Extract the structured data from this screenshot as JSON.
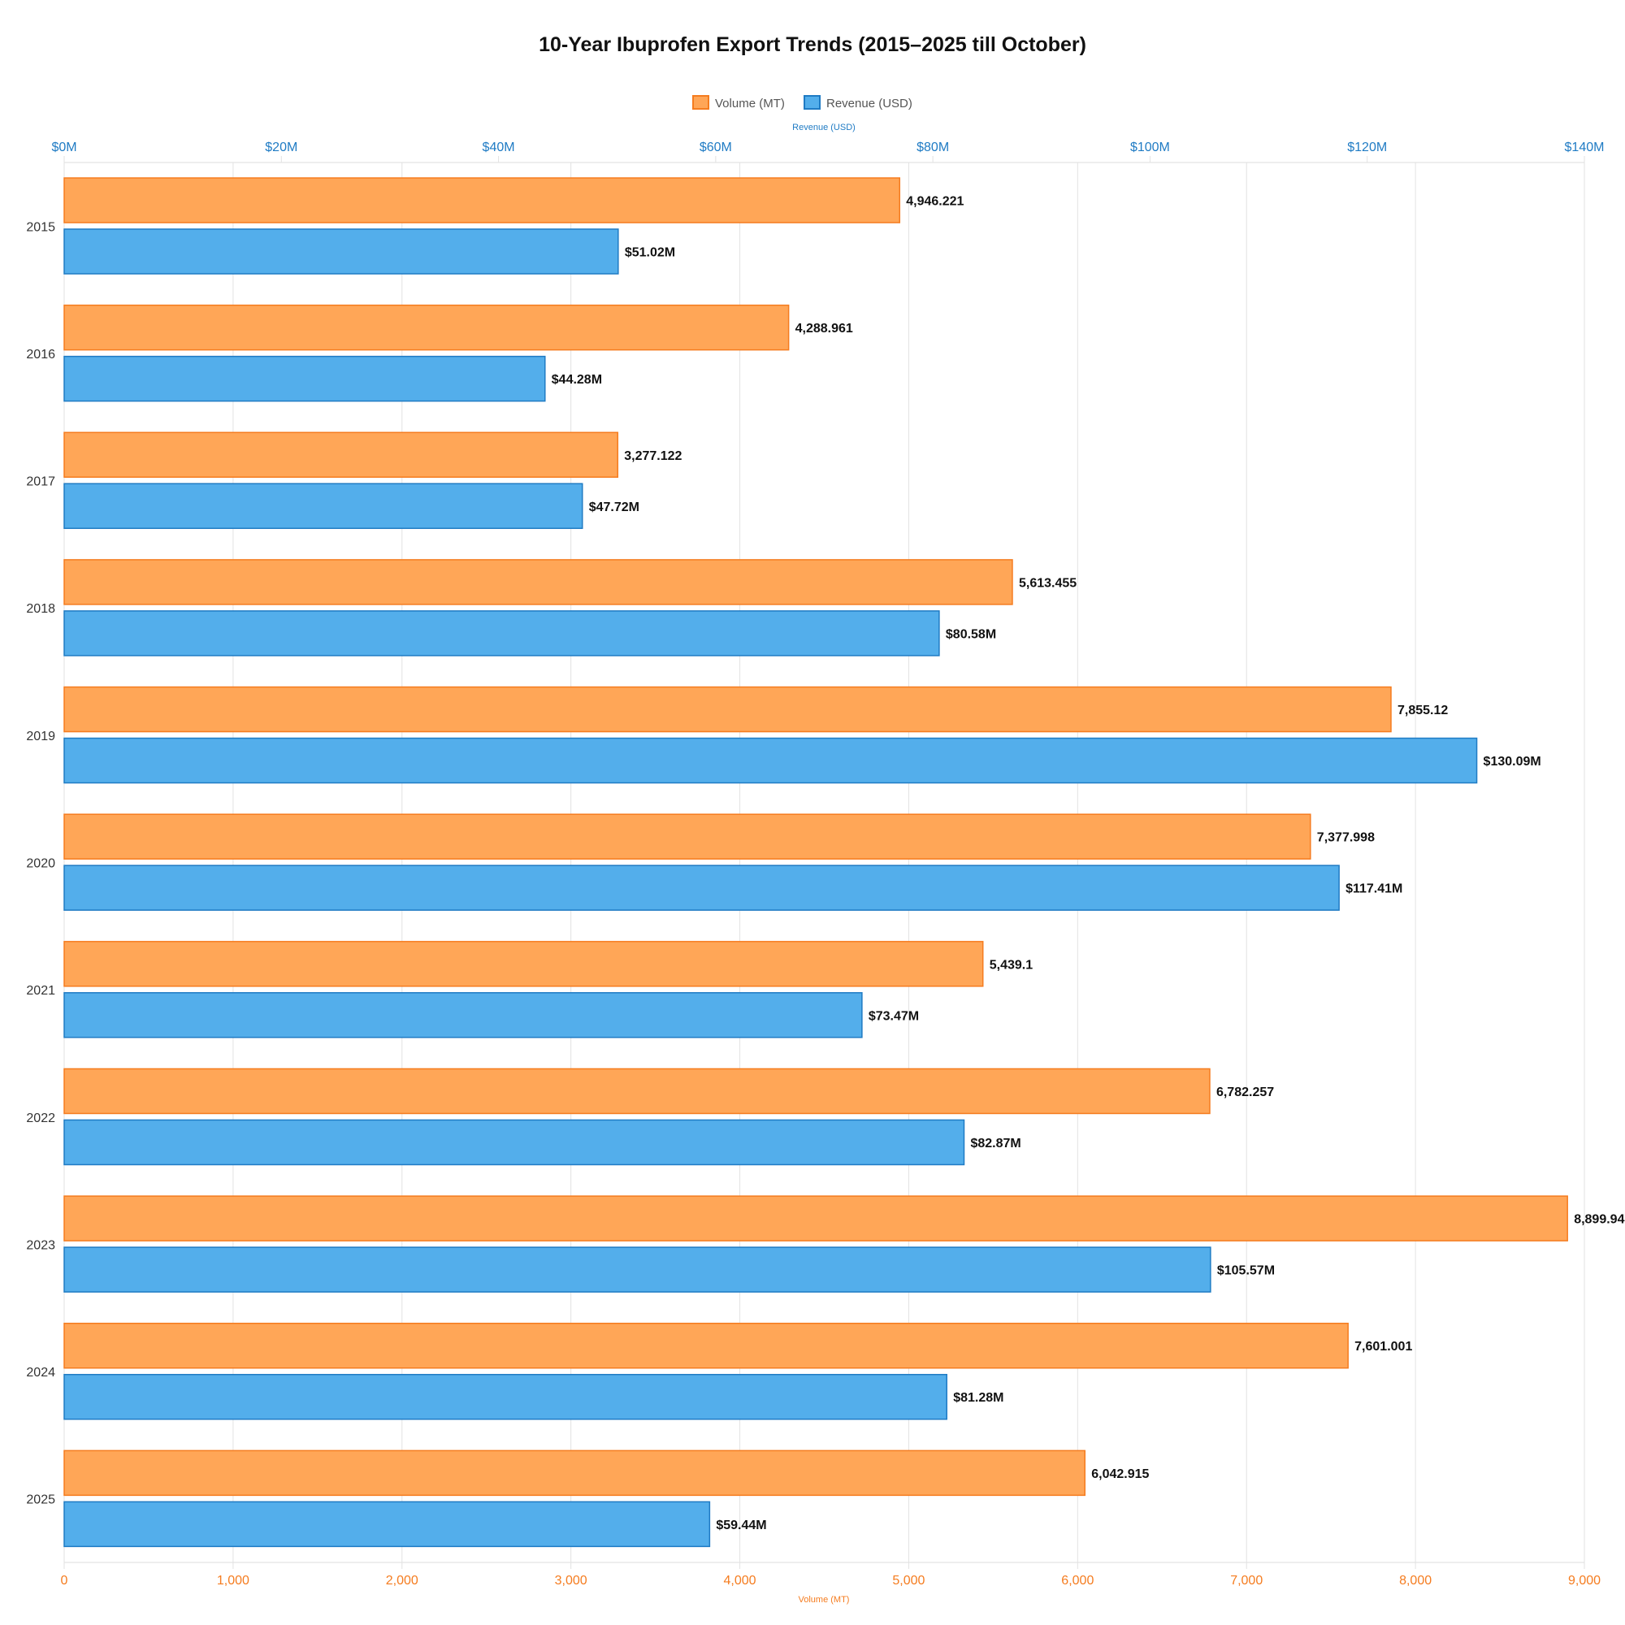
{
  "chart_data": {
    "type": "bar",
    "orientation": "horizontal",
    "title": "10-Year Ibuprofen Export Trends (2015–2025 till October)",
    "categories": [
      "2015",
      "2016",
      "2017",
      "2018",
      "2019",
      "2020",
      "2021",
      "2022",
      "2023",
      "2024",
      "2025"
    ],
    "series": [
      {
        "name": "Volume (MT)",
        "axis": "bottom",
        "color": "#ffa657",
        "border": "#f57c1f",
        "values": [
          4946.221,
          4288.961,
          3277.122,
          5613.455,
          7855.12,
          7377.998,
          5439.1,
          6782.257,
          8899.94,
          7601.001,
          6042.915
        ],
        "labels": [
          "4,946.221",
          "4,288.961",
          "3,277.122",
          "5,613.455",
          "7,855.12",
          "7,377.998",
          "5,439.1",
          "6,782.257",
          "8,899.94",
          "7,601.001",
          "6,042.915"
        ]
      },
      {
        "name": "Revenue (USD)",
        "axis": "top",
        "color": "#53aeeb",
        "border": "#1f7bc4",
        "values": [
          51.02,
          44.28,
          47.72,
          80.58,
          130.09,
          117.41,
          73.47,
          82.87,
          105.57,
          81.28,
          59.44
        ],
        "labels": [
          "$51.02M",
          "$44.28M",
          "$47.72M",
          "$80.58M",
          "$130.09M",
          "$117.41M",
          "$73.47M",
          "$82.87M",
          "$105.57M",
          "$81.28M",
          "$59.44M"
        ]
      }
    ],
    "x_bottom": {
      "label": "Volume (MT)",
      "range": [
        0,
        9000
      ],
      "ticks": [
        0,
        1000,
        2000,
        3000,
        4000,
        5000,
        6000,
        7000,
        8000,
        9000
      ],
      "tick_labels": [
        "0",
        "1,000",
        "2,000",
        "3,000",
        "4,000",
        "5,000",
        "6,000",
        "7,000",
        "8,000",
        "9,000"
      ]
    },
    "x_top": {
      "label": "Revenue (USD)",
      "range": [
        0,
        140
      ],
      "ticks": [
        0,
        20,
        40,
        60,
        80,
        100,
        120,
        140
      ],
      "tick_labels": [
        "$0M",
        "$20M",
        "$40M",
        "$60M",
        "$80M",
        "$100M",
        "$120M",
        "$140M"
      ]
    },
    "grid": true,
    "legend": "top-center"
  }
}
